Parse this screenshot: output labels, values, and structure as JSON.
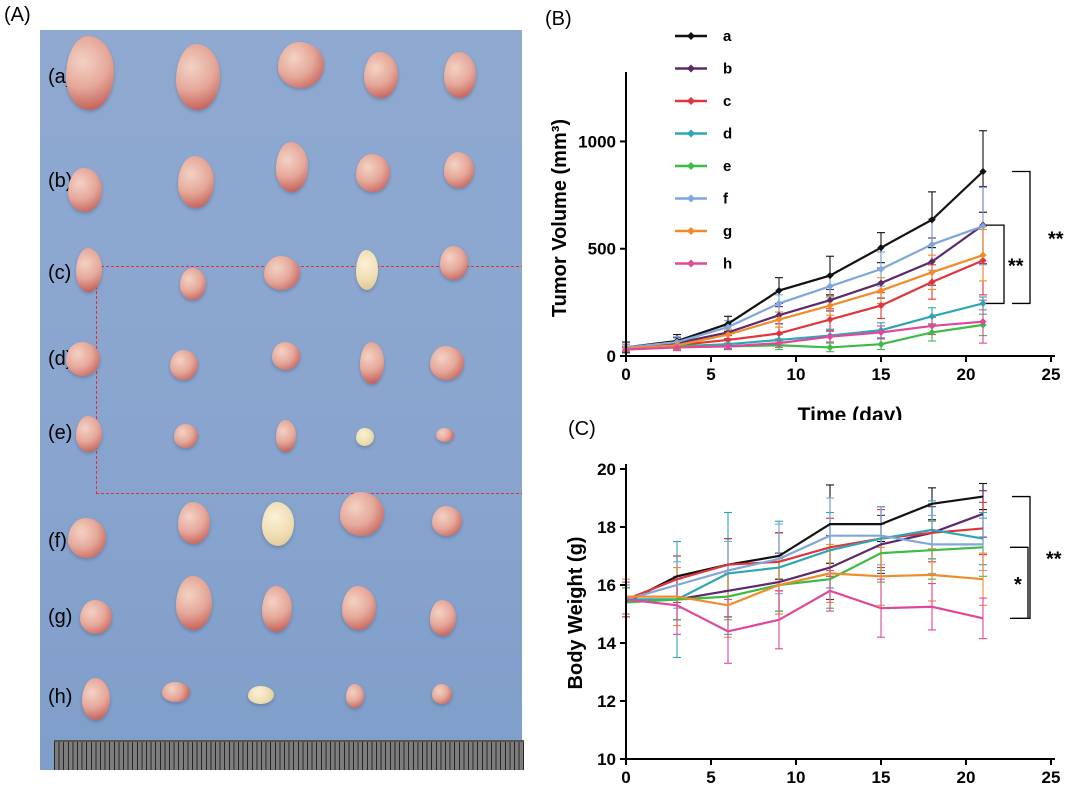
{
  "panel_labels": {
    "a": "(A)",
    "b": "(B)",
    "c": "(C)"
  },
  "photo": {
    "row_labels": [
      "(a)",
      "(b)",
      "(c)",
      "(d)",
      "(e)",
      "(f)",
      "(g)",
      "(h)"
    ]
  },
  "colors": {
    "a": "#111111",
    "b": "#5c2a6b",
    "c": "#e0353b",
    "d": "#2fa6b3",
    "e": "#3dbb45",
    "f": "#7fa7dc",
    "g": "#f08c28",
    "h": "#e0489a",
    "photo_background": "#8ba7cf",
    "dashed_box": "#e23030"
  },
  "chart_data": [
    {
      "type": "line",
      "panel": "(B)",
      "xlabel": "Time (day)",
      "ylabel": "Tumor Volume (mm³)",
      "xlim": [
        0,
        25
      ],
      "ylim": [
        0,
        1100
      ],
      "xticks": [
        0,
        5,
        10,
        15,
        20,
        25
      ],
      "yticks": [
        0,
        500,
        1000
      ],
      "x": [
        0,
        3,
        6,
        9,
        12,
        15,
        18,
        21
      ],
      "legend": "top-left",
      "significance": [
        {
          "label": "**",
          "from": "d",
          "to": "b"
        },
        {
          "label": "**",
          "from": "d",
          "to": "a"
        }
      ],
      "series": [
        {
          "name": "a",
          "color": "#111111",
          "values": [
            40,
            70,
            150,
            305,
            375,
            505,
            635,
            860
          ],
          "errors": [
            25,
            30,
            35,
            60,
            90,
            70,
            130,
            190
          ]
        },
        {
          "name": "b",
          "color": "#5c2a6b",
          "values": [
            40,
            60,
            110,
            190,
            260,
            340,
            440,
            610
          ],
          "errors": [
            15,
            25,
            30,
            40,
            50,
            70,
            110,
            180
          ]
        },
        {
          "name": "c",
          "color": "#e0353b",
          "values": [
            35,
            50,
            75,
            105,
            170,
            235,
            345,
            445
          ],
          "errors": [
            10,
            15,
            20,
            30,
            50,
            60,
            80,
            160
          ]
        },
        {
          "name": "d",
          "color": "#2fa6b3",
          "values": [
            35,
            45,
            55,
            75,
            95,
            120,
            185,
            245
          ],
          "errors": [
            10,
            15,
            20,
            25,
            30,
            35,
            40,
            30
          ]
        },
        {
          "name": "e",
          "color": "#3dbb45",
          "values": [
            35,
            45,
            45,
            50,
            40,
            55,
            110,
            145
          ],
          "errors": [
            10,
            15,
            15,
            20,
            20,
            25,
            40,
            50
          ]
        },
        {
          "name": "f",
          "color": "#7fa7dc",
          "values": [
            40,
            65,
            135,
            245,
            325,
            405,
            520,
            605
          ],
          "errors": [
            15,
            25,
            30,
            40,
            50,
            80,
            120,
            180
          ]
        },
        {
          "name": "g",
          "color": "#f08c28",
          "values": [
            35,
            50,
            100,
            170,
            235,
            305,
            390,
            470
          ],
          "errors": [
            10,
            15,
            25,
            35,
            45,
            60,
            80,
            120
          ]
        },
        {
          "name": "h",
          "color": "#e0489a",
          "values": [
            30,
            40,
            45,
            60,
            90,
            110,
            140,
            160
          ],
          "errors": [
            10,
            15,
            15,
            20,
            25,
            30,
            40,
            100
          ]
        }
      ]
    },
    {
      "type": "line",
      "panel": "(C)",
      "xlabel": "",
      "ylabel": "Body Weight (g)",
      "xlim": [
        0,
        25
      ],
      "ylim": [
        10,
        20
      ],
      "xticks": [
        0,
        5,
        10,
        15,
        20,
        25
      ],
      "yticks": [
        10,
        12,
        14,
        16,
        18,
        20
      ],
      "x": [
        0,
        3,
        6,
        9,
        12,
        15,
        18,
        21
      ],
      "significance": [
        {
          "label": "*",
          "from": "h",
          "to": "e"
        },
        {
          "label": "**",
          "from": "h",
          "to": "a"
        }
      ],
      "series": [
        {
          "name": "a",
          "color": "#111111",
          "values": [
            15.4,
            16.3,
            16.7,
            17.0,
            18.1,
            18.1,
            18.8,
            19.05
          ],
          "errors": [
            0.5,
            0.7,
            0.9,
            0.8,
            1.35,
            0.6,
            0.55,
            0.45
          ]
        },
        {
          "name": "b",
          "color": "#5c2a6b",
          "values": [
            15.5,
            15.5,
            15.8,
            16.1,
            16.6,
            17.4,
            17.8,
            18.45
          ],
          "errors": [
            0.5,
            0.7,
            0.9,
            1.0,
            1.1,
            1.0,
            0.9,
            0.8
          ]
        },
        {
          "name": "c",
          "color": "#e0353b",
          "values": [
            15.5,
            16.2,
            16.7,
            16.8,
            17.3,
            17.6,
            17.8,
            17.95
          ],
          "errors": [
            0.5,
            0.8,
            0.9,
            1.0,
            1.0,
            1.0,
            1.0,
            0.9
          ]
        },
        {
          "name": "d",
          "color": "#2fa6b3",
          "values": [
            15.5,
            15.5,
            16.4,
            16.6,
            17.2,
            17.6,
            17.9,
            17.6
          ],
          "errors": [
            0.6,
            2.0,
            2.1,
            1.6,
            1.3,
            1.1,
            1.0,
            0.9
          ]
        },
        {
          "name": "e",
          "color": "#3dbb45",
          "values": [
            15.4,
            15.5,
            15.6,
            16.0,
            16.2,
            17.1,
            17.2,
            17.3
          ],
          "errors": [
            0.5,
            0.7,
            0.8,
            0.9,
            1.0,
            1.0,
            1.0,
            1.0
          ]
        },
        {
          "name": "f",
          "color": "#7fa7dc",
          "values": [
            15.5,
            16.0,
            16.5,
            16.9,
            17.7,
            17.7,
            17.4,
            17.4
          ],
          "errors": [
            0.5,
            0.8,
            1.0,
            1.2,
            1.3,
            1.0,
            1.0,
            0.9
          ]
        },
        {
          "name": "g",
          "color": "#f08c28",
          "values": [
            15.6,
            15.6,
            15.3,
            16.0,
            16.4,
            16.3,
            16.35,
            16.2
          ],
          "errors": [
            0.6,
            1.0,
            1.1,
            1.0,
            1.0,
            1.0,
            0.9,
            0.9
          ]
        },
        {
          "name": "h",
          "color": "#e0489a",
          "values": [
            15.5,
            15.3,
            14.4,
            14.8,
            15.8,
            15.2,
            15.25,
            14.85
          ],
          "errors": [
            0.6,
            1.0,
            1.1,
            1.0,
            0.7,
            1.0,
            0.8,
            0.7
          ]
        }
      ]
    }
  ]
}
